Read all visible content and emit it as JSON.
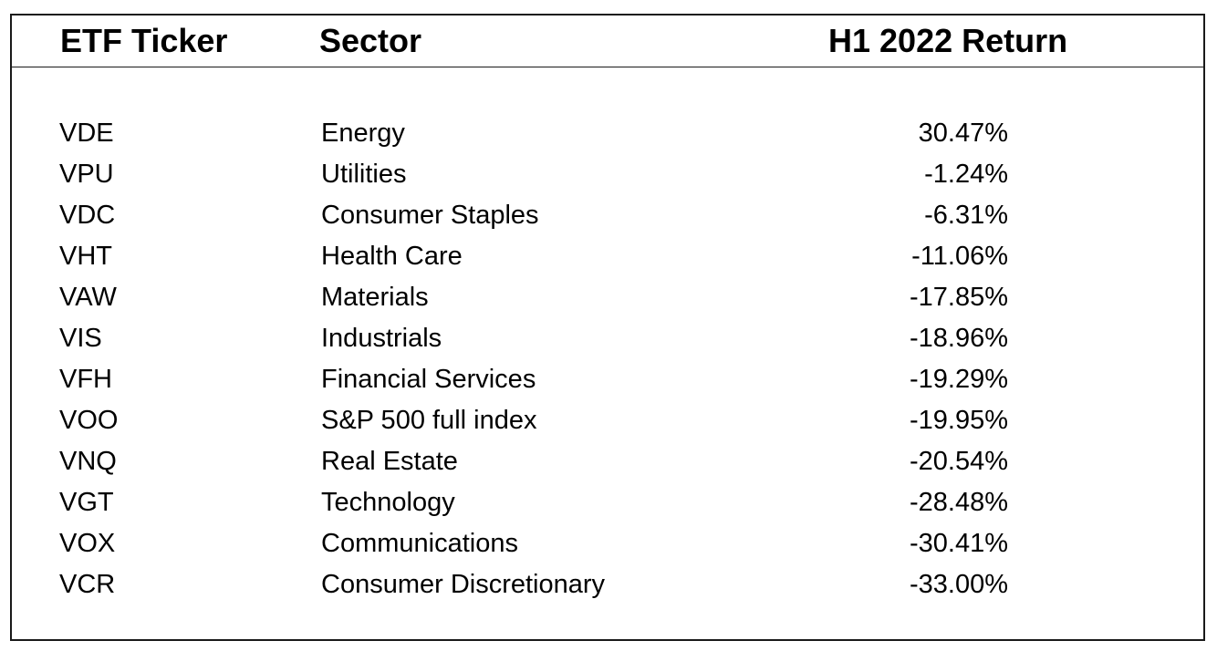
{
  "table": {
    "headers": {
      "ticker": "ETF Ticker",
      "sector": "Sector",
      "return": "H1 2022 Return"
    },
    "rows": [
      {
        "ticker": "VDE",
        "sector": "Energy",
        "return": "30.47%"
      },
      {
        "ticker": "VPU",
        "sector": "Utilities",
        "return": "-1.24%"
      },
      {
        "ticker": "VDC",
        "sector": "Consumer Staples",
        "return": "-6.31%"
      },
      {
        "ticker": "VHT",
        "sector": "Health Care",
        "return": "-11.06%"
      },
      {
        "ticker": "VAW",
        "sector": "Materials",
        "return": "-17.85%"
      },
      {
        "ticker": "VIS",
        "sector": "Industrials",
        "return": "-18.96%"
      },
      {
        "ticker": "VFH",
        "sector": "Financial Services",
        "return": "-19.29%"
      },
      {
        "ticker": "VOO",
        "sector": "S&P 500 full index",
        "return": "-19.95%"
      },
      {
        "ticker": "VNQ",
        "sector": "Real Estate",
        "return": "-20.54%"
      },
      {
        "ticker": "VGT",
        "sector": "Technology",
        "return": "-28.48%"
      },
      {
        "ticker": "VOX",
        "sector": "Communications",
        "return": "-30.41%"
      },
      {
        "ticker": "VCR",
        "sector": "Consumer Discretionary",
        "return": "-33.00%"
      }
    ]
  }
}
